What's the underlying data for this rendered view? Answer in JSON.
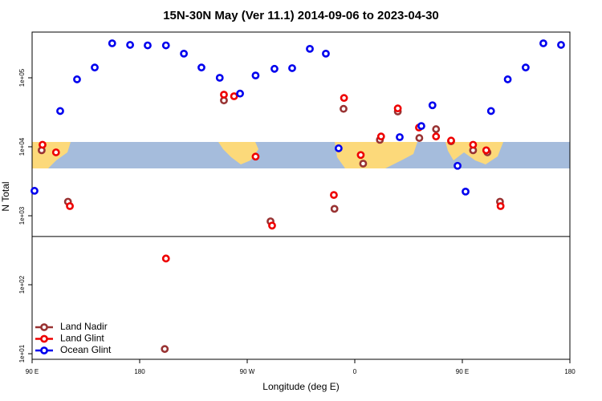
{
  "chart_data": {
    "type": "scatter",
    "title": "15N-30N May (Ver 11.1)   2014-09-06 to 2023-04-30",
    "x_label": "Longitude (deg E)",
    "y_label": "N Total",
    "log_y": true,
    "legend": "bottom-left",
    "xlim": [
      90,
      540
    ],
    "ylim": [
      8.3,
      460000
    ],
    "xticks": [
      {
        "value": 90,
        "label": "90 E"
      },
      180,
      {
        "value": 270,
        "label": "90 W"
      },
      {
        "value": 360,
        "label": "0"
      },
      {
        "value": 450,
        "label": "90 E"
      },
      {
        "value": 540,
        "label": "180"
      }
    ],
    "yticks": [
      {
        "value": 10,
        "label": "1e+01"
      },
      {
        "value": 100,
        "label": "1e+02"
      },
      {
        "value": 1000,
        "label": "1e+03"
      },
      {
        "value": 10000,
        "label": "1e+04"
      },
      {
        "value": 100000,
        "label": "1e+05"
      }
    ],
    "hline": 500,
    "series": [
      {
        "name": "Land Nadir",
        "color": "#993333",
        "x": [
          98,
          120,
          250.5,
          289.5,
          343,
          350.6,
          367,
          381,
          396,
          414,
          428,
          440.6,
          459,
          471,
          481.5,
          201
        ],
        "values": [
          8900,
          1600,
          47000,
          830,
          1260,
          35500,
          5700,
          12600,
          32500,
          13400,
          18000,
          12000,
          8900,
          8300,
          1600,
          11.7
        ]
      },
      {
        "name": "Land Glint",
        "color": "#ee0000",
        "x": [
          98.7,
          110,
          121.6,
          250.5,
          259,
          277,
          290.8,
          342.5,
          351,
          365,
          382,
          396,
          413.7,
          428,
          440.6,
          459,
          470,
          482,
          202
        ],
        "values": [
          10700,
          8300,
          1380,
          57000,
          54000,
          7200,
          720,
          2000,
          51000,
          7600,
          14100,
          36000,
          19000,
          14100,
          12300,
          10700,
          8900,
          1380,
          240
        ]
      },
      {
        "name": "Ocean Glint",
        "color": "#0000ee",
        "x": [
          92,
          113.5,
          127.6,
          142.4,
          157,
          172,
          186.7,
          202,
          217,
          231.7,
          247,
          264,
          277,
          292.8,
          307.6,
          322.4,
          335.8,
          346.5,
          397.6,
          415.7,
          425,
          446,
          452.7,
          474,
          488,
          503,
          517.8,
          532.6
        ],
        "values": [
          2300,
          33000,
          95000,
          141000,
          316000,
          300000,
          295000,
          295000,
          224000,
          141000,
          100000,
          59000,
          108000,
          135000,
          138000,
          263000,
          224000,
          9500,
          13800,
          20000,
          40000,
          5300,
          2240,
          33000,
          95000,
          141000,
          316000,
          300000
        ]
      }
    ]
  }
}
